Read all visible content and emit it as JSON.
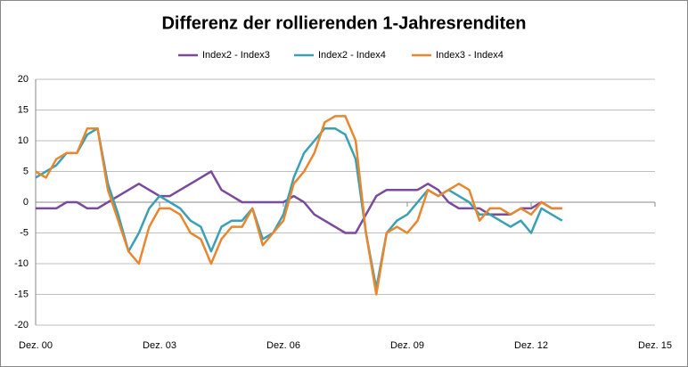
{
  "chart_data": {
    "type": "line",
    "title": "Differenz der rollierenden 1-Jahresrenditen",
    "categories": [
      "Dez. 00",
      null,
      null,
      null,
      null,
      null,
      null,
      null,
      null,
      null,
      null,
      null,
      "Dez. 03",
      null,
      null,
      null,
      null,
      null,
      null,
      null,
      null,
      null,
      null,
      null,
      "Dez. 06",
      null,
      null,
      null,
      null,
      null,
      null,
      null,
      null,
      null,
      null,
      null,
      "Dez. 09",
      null,
      null,
      null,
      null,
      null,
      null,
      null,
      null,
      null,
      null,
      null,
      "Dez. 12",
      null,
      null,
      null,
      null,
      null,
      null,
      null,
      null,
      null,
      null,
      null,
      "Dez. 15"
    ],
    "series": [
      {
        "name": "Index2 - Index3",
        "color": "#7a4b9c",
        "values": [
          -1,
          -1,
          -1,
          0,
          0,
          -1,
          -1,
          0,
          1,
          2,
          3,
          2,
          1,
          1,
          2,
          3,
          4,
          5,
          2,
          1,
          0,
          0,
          0,
          0,
          0,
          1,
          0,
          -2,
          -3,
          -4,
          -5,
          -5,
          -2,
          1,
          2,
          2,
          2,
          2,
          3,
          2,
          0,
          -1,
          -1,
          -1,
          -2,
          -2,
          -2,
          -1,
          -1,
          0,
          -1,
          -1,
          null,
          null,
          null,
          null,
          null,
          null,
          null,
          null,
          null
        ]
      },
      {
        "name": "Index2 - Index4",
        "color": "#3aa0b4",
        "values": [
          4,
          5,
          6,
          8,
          8,
          11,
          12,
          3,
          -2,
          -8,
          -5,
          -1,
          1,
          0,
          -1,
          -3,
          -4,
          -8,
          -4,
          -3,
          -3,
          -1,
          -6,
          -5,
          -2,
          4,
          8,
          10,
          12,
          12,
          11,
          7,
          -5,
          -14,
          -5,
          -3,
          -2,
          0,
          2,
          1,
          2,
          1,
          0,
          -2,
          -2,
          -3,
          -4,
          -3,
          -5,
          -1,
          -2,
          -3,
          null,
          null,
          null,
          null,
          null,
          null,
          null,
          null,
          null
        ]
      },
      {
        "name": "Index3 - Index4",
        "color": "#e8872f",
        "values": [
          5,
          4,
          7,
          8,
          8,
          12,
          12,
          2,
          -3,
          -8,
          -10,
          -4,
          -1,
          -1,
          -2,
          -5,
          -6,
          -10,
          -6,
          -4,
          -4,
          -1,
          -7,
          -5,
          -3,
          3,
          5,
          8,
          13,
          14,
          14,
          10,
          -5,
          -15,
          -5,
          -4,
          -5,
          -3,
          2,
          1,
          2,
          3,
          2,
          -3,
          -1,
          -1,
          -2,
          -1,
          -2,
          0,
          -1,
          -1,
          null,
          null,
          null,
          null,
          null,
          null,
          null,
          null,
          null
        ]
      }
    ],
    "ylim": [
      -20,
      20
    ],
    "yticks": [
      -20,
      -15,
      -10,
      -5,
      0,
      5,
      10,
      15,
      20
    ],
    "grid": true,
    "legend": "top"
  }
}
